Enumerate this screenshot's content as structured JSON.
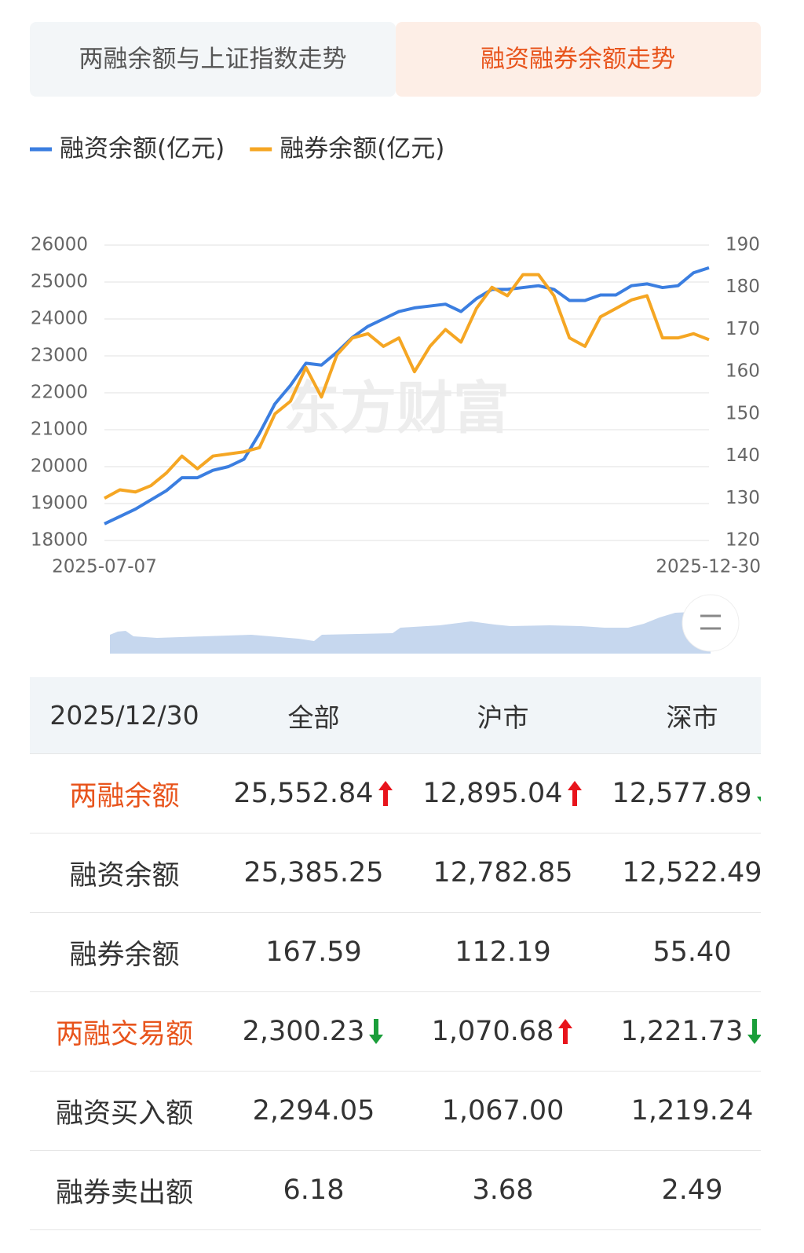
{
  "tabs": [
    "两融余额与上证指数走势",
    "融资融券余额走势"
  ],
  "chart_data": {
    "type": "line",
    "watermark": "东方财富",
    "categories": [
      "2025-07-07",
      null,
      null,
      null,
      null,
      null,
      null,
      null,
      null,
      null,
      null,
      null,
      null,
      null,
      null,
      null,
      null,
      null,
      null,
      null,
      null,
      null,
      null,
      null,
      null,
      null,
      null,
      null,
      null,
      null,
      null,
      null,
      null,
      null,
      null,
      null,
      null,
      null,
      null,
      "2025-12-30"
    ],
    "series": [
      {
        "name": "融资余额(亿元)",
        "color": "#3b7ee0",
        "values": [
          18450,
          18650,
          18850,
          19100,
          19350,
          19700,
          19700,
          19900,
          20000,
          20200,
          20900,
          21700,
          22200,
          22800,
          22750,
          23100,
          23500,
          23800,
          24000,
          24200,
          24300,
          24350,
          24400,
          24200,
          24550,
          24800,
          24800,
          24850,
          24900,
          24800,
          24500,
          24500,
          24650,
          24650,
          24900,
          24950,
          24850,
          24900,
          25250,
          25385
        ]
      },
      {
        "name": "融券余额(亿元)",
        "color": "#f5a623",
        "axis": "y2",
        "values": [
          130,
          132,
          131.5,
          133,
          136,
          140,
          137,
          140,
          140.5,
          141,
          142,
          150,
          153,
          161,
          154,
          164,
          168,
          169,
          166,
          168,
          160,
          166,
          170,
          167,
          175,
          180,
          178,
          183,
          183,
          178,
          168,
          166,
          173,
          175,
          177,
          178,
          168,
          168,
          169,
          167.6
        ]
      }
    ],
    "ylim": [
      18000,
      26000
    ],
    "yticks": [
      18000,
      19000,
      20000,
      21000,
      22000,
      23000,
      24000,
      25000,
      26000
    ],
    "y2lim": [
      120,
      190
    ],
    "y2ticks": [
      120,
      130,
      140,
      150,
      160,
      170,
      180,
      190
    ],
    "grid": true,
    "legend": "top-left"
  },
  "table": {
    "header": [
      "2025/12/30",
      "全部",
      "沪市",
      "深市"
    ],
    "rows": [
      [
        "两融余额",
        "25,552.84",
        "12,895.04",
        "12,577.89"
      ],
      [
        "融资余额",
        "25,385.25",
        "12,782.85",
        "12,522.49"
      ],
      [
        "融券余额",
        "167.59",
        "112.19",
        "55.40"
      ],
      [
        "两融交易额",
        "2,300.23",
        "1,070.68",
        "1,221.73"
      ],
      [
        "融资买入额",
        "2,294.05",
        "1,067.00",
        "1,219.24"
      ],
      [
        "融券卖出额",
        "6.18",
        "3.68",
        "2.49"
      ]
    ]
  }
}
